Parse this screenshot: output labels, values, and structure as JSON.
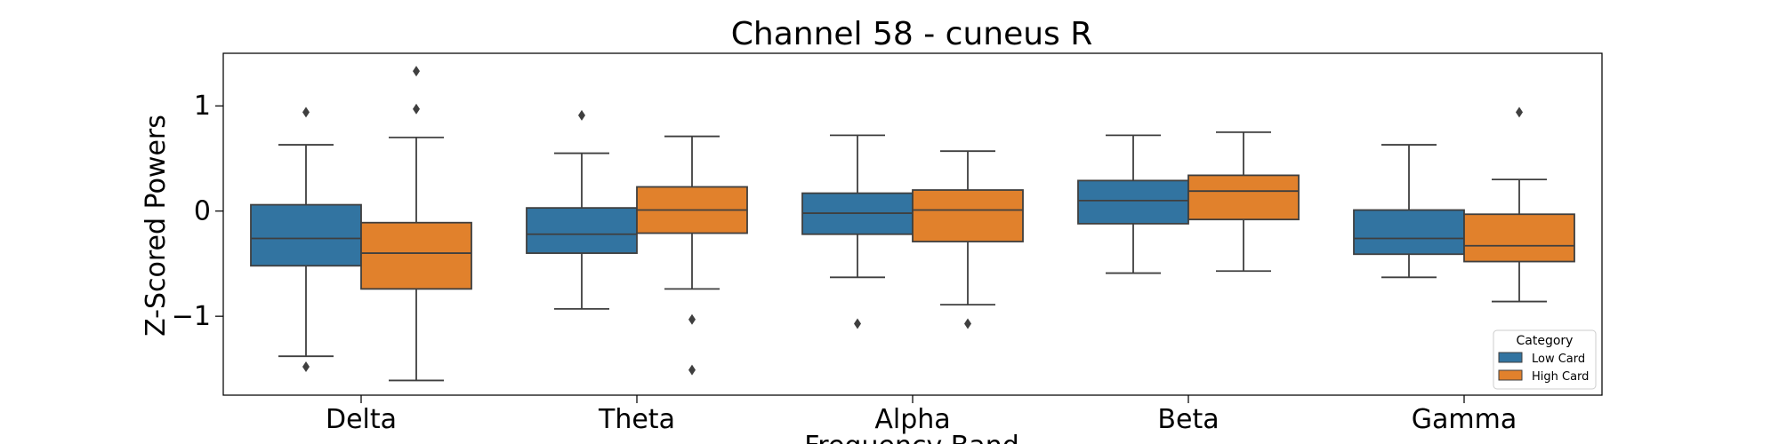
{
  "chart_data": {
    "type": "boxplot",
    "title": "Channel 58 - cuneus R",
    "xlabel": "Frequency Band",
    "ylabel": "Z-Scored Powers",
    "categories": [
      "Delta",
      "Theta",
      "Alpha",
      "Beta",
      "Gamma"
    ],
    "ylim": [
      -1.75,
      1.5
    ],
    "yticks": [
      {
        "value": 1,
        "label": "1"
      },
      {
        "value": 0,
        "label": "0"
      },
      {
        "value": -1,
        "label": "−1"
      }
    ],
    "grid": false,
    "legend": {
      "title": "Category",
      "placement": "lower-right"
    },
    "series": [
      {
        "name": "Low Card",
        "color": "#3274a1",
        "boxes": [
          {
            "whislo": -1.38,
            "q1": -0.52,
            "med": -0.26,
            "q3": 0.06,
            "whishi": 0.63,
            "fliers": [
              0.94,
              -1.48
            ]
          },
          {
            "whislo": -0.93,
            "q1": -0.4,
            "med": -0.22,
            "q3": 0.03,
            "whishi": 0.55,
            "fliers": [
              0.91
            ]
          },
          {
            "whislo": -0.63,
            "q1": -0.22,
            "med": -0.02,
            "q3": 0.17,
            "whishi": 0.72,
            "fliers": [
              -1.07
            ]
          },
          {
            "whislo": -0.59,
            "q1": -0.12,
            "med": 0.1,
            "q3": 0.29,
            "whishi": 0.72,
            "fliers": []
          },
          {
            "whislo": -0.63,
            "q1": -0.41,
            "med": -0.26,
            "q3": 0.01,
            "whishi": 0.63,
            "fliers": []
          }
        ]
      },
      {
        "name": "High Card",
        "color": "#e1812c",
        "boxes": [
          {
            "whislo": -1.61,
            "q1": -0.74,
            "med": -0.4,
            "q3": -0.11,
            "whishi": 0.7,
            "fliers": [
              1.33,
              0.97
            ]
          },
          {
            "whislo": -0.74,
            "q1": -0.21,
            "med": 0.01,
            "q3": 0.23,
            "whishi": 0.71,
            "fliers": [
              -1.03,
              -1.51
            ]
          },
          {
            "whislo": -0.89,
            "q1": -0.29,
            "med": 0.01,
            "q3": 0.2,
            "whishi": 0.57,
            "fliers": [
              -1.07
            ]
          },
          {
            "whislo": -0.57,
            "q1": -0.08,
            "med": 0.19,
            "q3": 0.34,
            "whishi": 0.75,
            "fliers": []
          },
          {
            "whislo": -0.86,
            "q1": -0.48,
            "med": -0.33,
            "q3": -0.03,
            "whishi": 0.3,
            "fliers": [
              0.94
            ]
          }
        ]
      }
    ]
  }
}
